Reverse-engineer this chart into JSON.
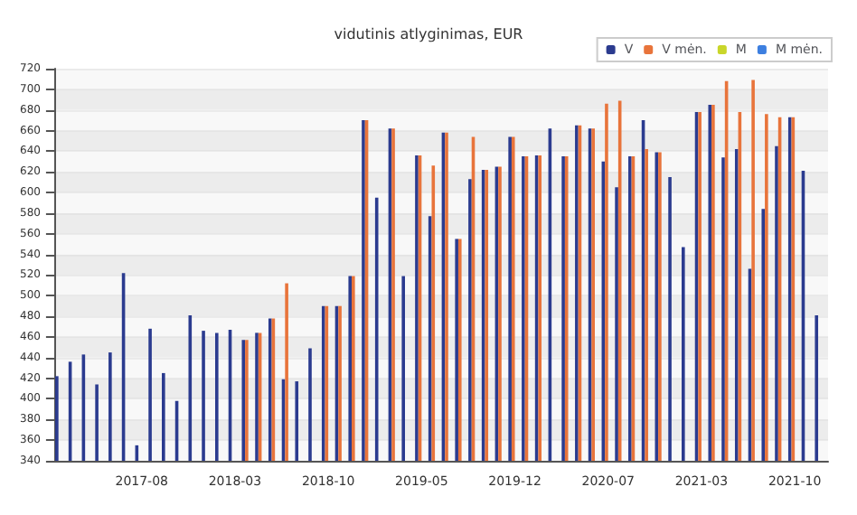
{
  "chart_data": {
    "type": "bar",
    "title": "vidutinis atlyginimas, EUR",
    "categories": [
      null,
      null,
      null,
      null,
      null,
      null,
      "2017-08",
      null,
      null,
      null,
      null,
      null,
      null,
      "2018-03",
      null,
      null,
      null,
      null,
      null,
      null,
      "2018-10",
      null,
      null,
      null,
      null,
      null,
      null,
      "2019-05",
      null,
      null,
      null,
      null,
      null,
      null,
      "2019-12",
      null,
      null,
      null,
      null,
      null,
      null,
      "2020-07",
      null,
      null,
      null,
      null,
      null,
      null,
      "2021-03",
      null,
      null,
      null,
      null,
      null,
      null,
      "2021-10",
      null,
      null
    ],
    "series": [
      {
        "name": "V",
        "color": "#2b3b8f",
        "values": [
          422,
          436,
          443,
          414,
          445,
          522,
          355,
          468,
          425,
          398,
          481,
          466,
          464,
          467,
          457,
          464,
          478,
          419,
          417,
          449,
          490,
          490,
          519,
          670,
          595,
          662,
          519,
          636,
          577,
          658,
          555,
          613,
          622,
          625,
          654,
          635,
          636,
          662,
          635,
          665,
          662,
          630,
          605,
          635,
          670,
          639,
          615,
          547,
          678,
          685,
          634,
          642,
          526,
          584,
          645,
          673,
          621,
          481
        ]
      },
      {
        "name": "V mėn.",
        "color": "#e8743b",
        "values": [
          null,
          null,
          null,
          null,
          null,
          null,
          null,
          null,
          null,
          null,
          null,
          null,
          null,
          null,
          457,
          464,
          478,
          512,
          null,
          null,
          490,
          490,
          519,
          670,
          null,
          662,
          null,
          636,
          626,
          658,
          555,
          654,
          622,
          625,
          654,
          635,
          636,
          null,
          635,
          665,
          662,
          686,
          689,
          635,
          642,
          639,
          null,
          null,
          678,
          685,
          708,
          678,
          709,
          676,
          673,
          673,
          null,
          null
        ]
      },
      {
        "name": "M",
        "color": "#c9d62a",
        "values": [
          null,
          null,
          null,
          null,
          null,
          null,
          null,
          null,
          null,
          null,
          null,
          null,
          null,
          null,
          null,
          null,
          null,
          null,
          null,
          null,
          null,
          null,
          null,
          null,
          null,
          null,
          null,
          null,
          null,
          null,
          null,
          null,
          null,
          null,
          null,
          null,
          null,
          null,
          null,
          null,
          null,
          null,
          null,
          null,
          null,
          null,
          null,
          null,
          null,
          null,
          null,
          null,
          null,
          null,
          null,
          null,
          null,
          null
        ]
      },
      {
        "name": "M mėn.",
        "color": "#3d7fe0",
        "values": [
          null,
          null,
          null,
          null,
          null,
          null,
          null,
          null,
          null,
          null,
          null,
          null,
          null,
          null,
          null,
          null,
          null,
          null,
          null,
          null,
          null,
          null,
          null,
          null,
          null,
          null,
          null,
          null,
          null,
          null,
          null,
          null,
          null,
          null,
          null,
          null,
          null,
          null,
          null,
          null,
          null,
          null,
          null,
          null,
          null,
          null,
          null,
          null,
          null,
          null,
          null,
          null,
          null,
          null,
          null,
          null,
          null,
          null
        ]
      }
    ],
    "ylim": [
      340,
      720
    ],
    "yticks": [
      340,
      360,
      380,
      400,
      420,
      440,
      460,
      480,
      500,
      520,
      540,
      560,
      580,
      600,
      620,
      640,
      660,
      680,
      700,
      720
    ],
    "grid": "y",
    "legend": "top right"
  }
}
